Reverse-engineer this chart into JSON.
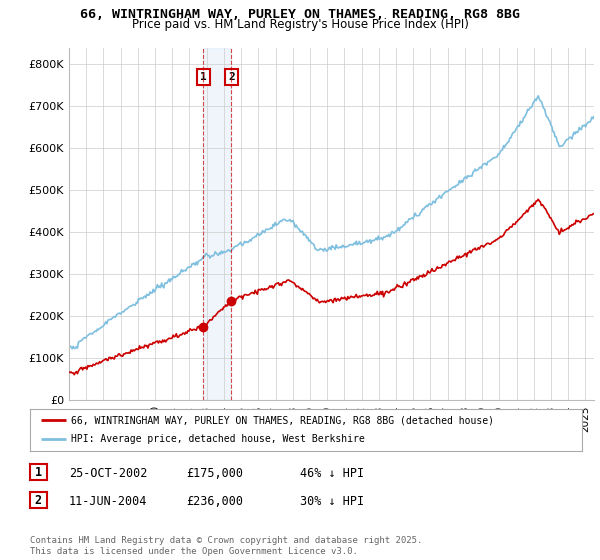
{
  "title": "66, WINTRINGHAM WAY, PURLEY ON THAMES, READING, RG8 8BG",
  "subtitle": "Price paid vs. HM Land Registry's House Price Index (HPI)",
  "ylabel_ticks": [
    "£0",
    "£100K",
    "£200K",
    "£300K",
    "£400K",
    "£500K",
    "£600K",
    "£700K",
    "£800K"
  ],
  "ytick_values": [
    0,
    100000,
    200000,
    300000,
    400000,
    500000,
    600000,
    700000,
    800000
  ],
  "ylim": [
    0,
    840000
  ],
  "xlim_start": 1995.0,
  "xlim_end": 2025.5,
  "sale1_x": 2002.81,
  "sale1_y": 175000,
  "sale2_x": 2004.44,
  "sale2_y": 236000,
  "sale_color": "#cc0000",
  "hpi_color": "#7fbfdf",
  "annotation_box_color": "#cc0000",
  "legend_line1": "66, WINTRINGHAM WAY, PURLEY ON THAMES, READING, RG8 8BG (detached house)",
  "legend_line2": "HPI: Average price, detached house, West Berkshire",
  "table_row1": [
    "1",
    "25-OCT-2002",
    "£175,000",
    "46% ↓ HPI"
  ],
  "table_row2": [
    "2",
    "11-JUN-2004",
    "£236,000",
    "30% ↓ HPI"
  ],
  "footer": "Contains HM Land Registry data © Crown copyright and database right 2025.\nThis data is licensed under the Open Government Licence v3.0.",
  "background_color": "#ffffff",
  "grid_color": "#cccccc"
}
